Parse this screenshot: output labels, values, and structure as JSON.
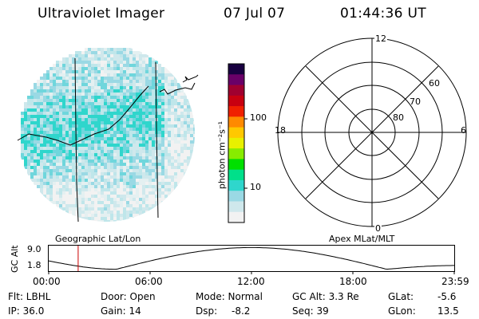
{
  "header": {
    "title": "Ultraviolet Imager",
    "date": "07 Jul 07",
    "time": "01:44:36 UT"
  },
  "colorbar": {
    "label": "photon cm⁻²s⁻¹",
    "ticks": [
      "100",
      "10"
    ],
    "tick_values": [
      100,
      10
    ],
    "range": [
      2,
      600
    ],
    "scale": "log",
    "colors": [
      "#f2f2f2",
      "#cfe8ec",
      "#9ad9e4",
      "#2fd6cc",
      "#00e08a",
      "#00e000",
      "#88ec00",
      "#e8f000",
      "#ffc800",
      "#ff8a00",
      "#f02000",
      "#c80010",
      "#a00030",
      "#6a0068",
      "#180040"
    ]
  },
  "polar": {
    "mlt_labels": [
      "12",
      "18",
      "6",
      "0"
    ],
    "mlat_labels": [
      "60",
      "70",
      "80"
    ],
    "mlat_values": [
      60,
      70,
      80
    ]
  },
  "timeline": {
    "ylabel": "GC Alt",
    "y_ticks": [
      "9.0",
      "1.8"
    ],
    "y_values": [
      9.0,
      1.8
    ],
    "left_title": "Geographic Lat/Lon",
    "right_title": "Apex MLat/MLT",
    "x_ticks": [
      "00:00",
      "06:00",
      "12:00",
      "18:00",
      "23:59"
    ],
    "current_time": "01:44:36"
  },
  "footer": {
    "flt": "Flt: LBHL",
    "ip": "IP: 36.0",
    "door": "Door: Open",
    "gain": "Gain: 14",
    "mode": "Mode: Normal",
    "dsp_label": "Dsp:",
    "dsp_value": "-8.2",
    "gcalt": "GC Alt: 3.3 Re",
    "seq": "Seq: 39",
    "glat_label": "GLat:",
    "glat_value": "-5.6",
    "glon_label": "GLon:",
    "glon_value": "13.5"
  },
  "colors": {
    "accent_red": "#cc0000",
    "aurora_cyan": "#2fd6cc"
  }
}
